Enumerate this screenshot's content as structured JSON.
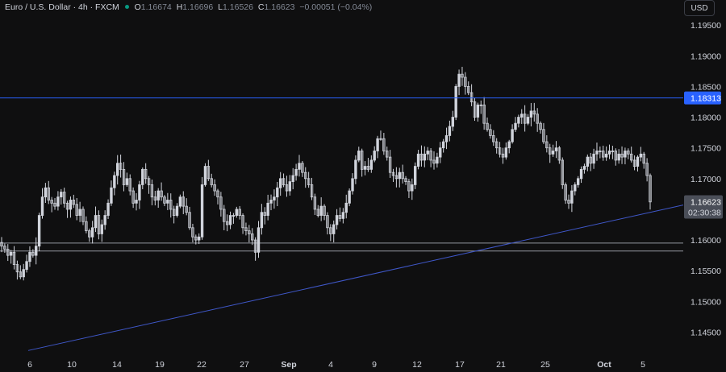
{
  "header": {
    "symbol": "Euro / U.S. Dollar · 4h · FXCM",
    "o_label": "O",
    "o_value": "1.16674",
    "h_label": "H",
    "h_value": "1.16696",
    "l_label": "L",
    "l_value": "1.16526",
    "c_label": "C",
    "c_value": "1.16623",
    "change": "−0.00051 (−0.04%)"
  },
  "currency_button": "USD",
  "price_scale": {
    "ticks": [
      "1.19500",
      "1.19000",
      "1.18500",
      "1.18000",
      "1.17500",
      "1.17000",
      "1.16500",
      "1.16000",
      "1.15500",
      "1.15000",
      "1.14500"
    ],
    "level_badge": "1.18313",
    "last_price_badge": "1.16623",
    "countdown": "02:30:38"
  },
  "time_axis": {
    "ticks": [
      "6",
      "10",
      "14",
      "19",
      "22",
      "27",
      "Sep",
      "4",
      "9",
      "12",
      "17",
      "21",
      "25",
      "Oct",
      "5"
    ]
  },
  "colors": {
    "background": "#0f0f10",
    "candle": "#d1d4dc",
    "level_line": "#2962ff",
    "trend_line": "#3f57c8",
    "support_lines": "#9598a1",
    "badge_blue": "#2962ff",
    "badge_grey": "#4a4e58"
  },
  "chart_data": {
    "type": "candlestick",
    "timeframe": "4h",
    "y_range": [
      1.1406,
      1.1962
    ],
    "price_scale_ticks": [
      1.195,
      1.19,
      1.185,
      1.18,
      1.175,
      1.17,
      1.165,
      1.16,
      1.155,
      1.15,
      1.145
    ],
    "horizontal_levels": [
      {
        "price": 1.18313,
        "style": "blue",
        "label": "1.18313"
      },
      {
        "price": 1.1595,
        "style": "grey"
      },
      {
        "price": 1.1582,
        "style": "grey"
      }
    ],
    "trendline": {
      "from_price": 1.142,
      "to_price": 1.1657
    },
    "last_price": 1.16623,
    "x_ticks": [
      "6",
      "10",
      "14",
      "19",
      "22",
      "27",
      "Sep",
      "4",
      "9",
      "12",
      "17",
      "21",
      "25",
      "Oct",
      "5"
    ],
    "close_path": [
      1.159,
      1.1585,
      1.1575,
      1.158,
      1.156,
      1.1548,
      1.154,
      1.1552,
      1.1565,
      1.158,
      1.1575,
      1.159,
      1.164,
      1.167,
      1.1685,
      1.1665,
      1.166,
      1.1655,
      1.167,
      1.1678,
      1.166,
      1.165,
      1.1665,
      1.1658,
      1.164,
      1.165,
      1.163,
      1.1615,
      1.1605,
      1.162,
      1.164,
      1.161,
      1.1625,
      1.164,
      1.166,
      1.1685,
      1.1705,
      1.1725,
      1.1715,
      1.169,
      1.17,
      1.168,
      1.166,
      1.1665,
      1.169,
      1.1715,
      1.17,
      1.169,
      1.167,
      1.1665,
      1.168,
      1.167,
      1.166,
      1.1665,
      1.165,
      1.164,
      1.1655,
      1.167,
      1.1655,
      1.1645,
      1.162,
      1.1605,
      1.16,
      1.1605,
      1.169,
      1.172,
      1.17,
      1.169,
      1.168,
      1.167,
      1.165,
      1.163,
      1.1625,
      1.164,
      1.164,
      1.165,
      1.164,
      1.162,
      1.1615,
      1.161,
      1.16,
      1.158,
      1.162,
      1.1645,
      1.164,
      1.166,
      1.1665,
      1.167,
      1.1685,
      1.17,
      1.169,
      1.168,
      1.1695,
      1.1705,
      1.1715,
      1.1725,
      1.171,
      1.17,
      1.169,
      1.167,
      1.165,
      1.164,
      1.1655,
      1.164,
      1.162,
      1.161,
      1.1625,
      1.164,
      1.1635,
      1.1645,
      1.166,
      1.168,
      1.17,
      1.173,
      1.1745,
      1.1715,
      1.172,
      1.1715,
      1.173,
      1.1745,
      1.1765,
      1.1765,
      1.1745,
      1.1735,
      1.171,
      1.1705,
      1.17,
      1.171,
      1.17,
      1.1695,
      1.168,
      1.169,
      1.172,
      1.174,
      1.173,
      1.174,
      1.1745,
      1.173,
      1.1725,
      1.1735,
      1.175,
      1.176,
      1.177,
      1.1785,
      1.18,
      1.185,
      1.187,
      1.1865,
      1.185,
      1.184,
      1.1825,
      1.18,
      1.182,
      1.182,
      1.179,
      1.178,
      1.177,
      1.176,
      1.175,
      1.174,
      1.1735,
      1.175,
      1.176,
      1.178,
      1.179,
      1.18,
      1.1805,
      1.179,
      1.18,
      1.181,
      1.1805,
      1.179,
      1.178,
      1.176,
      1.175,
      1.174,
      1.1745,
      1.175,
      1.173,
      1.169,
      1.1665,
      1.166,
      1.168,
      1.169,
      1.17,
      1.1715,
      1.172,
      1.1735,
      1.1725,
      1.174,
      1.1745,
      1.1745,
      1.1735,
      1.174,
      1.1745,
      1.1745,
      1.173,
      1.174,
      1.1735,
      1.1745,
      1.174,
      1.173,
      1.172,
      1.1735,
      1.174,
      1.1725,
      1.1705,
      1.1662
    ]
  }
}
